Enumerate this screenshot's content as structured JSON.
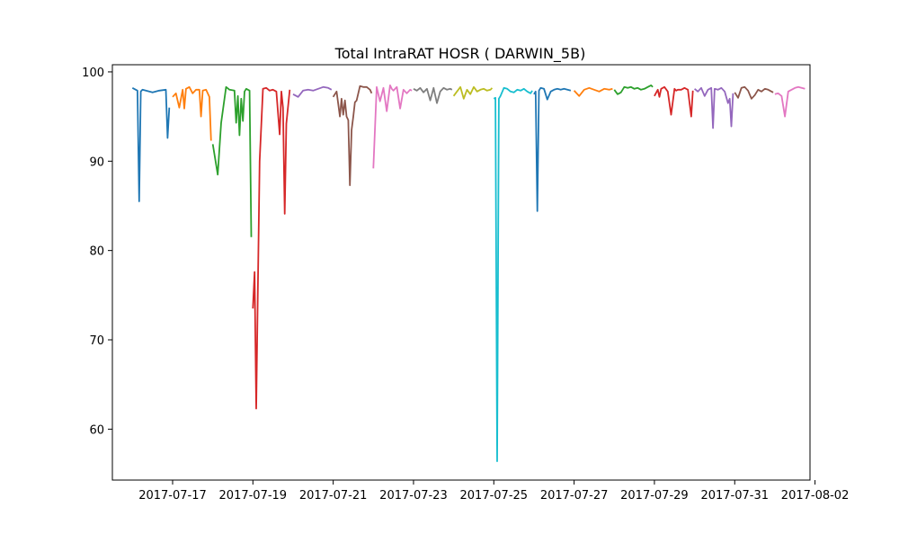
{
  "chart_data": {
    "type": "line",
    "title": "Total IntraRAT HOSR ( DARWIN_5B)",
    "xlabel": "",
    "ylabel": "",
    "x_axis": {
      "type": "date",
      "range": [
        "2017-07-15T12:00",
        "2017-08-01T21:00"
      ],
      "ticks": [
        "2017-07-17",
        "2017-07-19",
        "2017-07-21",
        "2017-07-23",
        "2017-07-25",
        "2017-07-27",
        "2017-07-29",
        "2017-07-31",
        "2017-08-02"
      ]
    },
    "y_axis": {
      "range": [
        54.3,
        100.8
      ],
      "ticks": [
        60,
        70,
        80,
        90,
        100
      ]
    },
    "grid": false,
    "legend": "none",
    "colors": [
      "#1f77b4",
      "#ff7f0e",
      "#2ca02c",
      "#d62728",
      "#9467bd",
      "#8c564b",
      "#e377c2",
      "#7f7f7f",
      "#bcbd22",
      "#17becf"
    ],
    "series": [
      {
        "x": [
          "2017-07-16T00:00",
          "2017-07-16T03:00",
          "2017-07-16T04:00",
          "2017-07-16T05:00",
          "2017-07-16T06:00",
          "2017-07-16T08:00",
          "2017-07-16T12:00",
          "2017-07-16T16:00",
          "2017-07-16T20:00",
          "2017-07-16T21:00",
          "2017-07-16T22:00",
          "2017-07-16T23:00"
        ],
        "y": [
          98.2,
          97.9,
          85.5,
          97.8,
          98.0,
          97.9,
          97.7,
          97.9,
          98.0,
          92.6,
          96.0,
          null
        ]
      },
      {
        "x": [
          "2017-07-17T00:00",
          "2017-07-17T02:00",
          "2017-07-17T04:00",
          "2017-07-17T06:00",
          "2017-07-17T07:00",
          "2017-07-17T08:00",
          "2017-07-17T10:00",
          "2017-07-17T12:00",
          "2017-07-17T14:00",
          "2017-07-17T16:00",
          "2017-07-17T17:00",
          "2017-07-17T18:00",
          "2017-07-17T20:00",
          "2017-07-17T22:00",
          "2017-07-17T23:00"
        ],
        "y": [
          97.2,
          97.6,
          96.0,
          98.0,
          95.9,
          98.1,
          98.3,
          97.6,
          98.0,
          98.0,
          95.0,
          97.9,
          98.0,
          97.2,
          92.3
        ]
      },
      {
        "x": [
          "2017-07-18T00:00",
          "2017-07-18T03:00",
          "2017-07-18T05:00",
          "2017-07-18T08:00",
          "2017-07-18T10:00",
          "2017-07-18T13:00",
          "2017-07-18T14:00",
          "2017-07-18T15:00",
          "2017-07-18T16:00",
          "2017-07-18T17:00",
          "2017-07-18T18:00",
          "2017-07-18T19:00",
          "2017-07-18T20:00",
          "2017-07-18T22:00",
          "2017-07-18T23:00"
        ],
        "y": [
          91.9,
          88.5,
          94.3,
          98.3,
          98.0,
          97.9,
          94.3,
          97.3,
          92.9,
          97.0,
          94.5,
          97.8,
          98.1,
          97.9,
          81.5
        ]
      },
      {
        "x": [
          "2017-07-19T00:00",
          "2017-07-19T01:00",
          "2017-07-19T02:00",
          "2017-07-19T04:00",
          "2017-07-19T06:00",
          "2017-07-19T08:00",
          "2017-07-19T10:00",
          "2017-07-19T12:00",
          "2017-07-19T14:00",
          "2017-07-19T16:00",
          "2017-07-19T17:00",
          "2017-07-19T18:00",
          "2017-07-19T19:00",
          "2017-07-19T20:00",
          "2017-07-19T22:00"
        ],
        "y": [
          73.5,
          77.6,
          62.3,
          90.0,
          98.1,
          98.2,
          97.9,
          98.0,
          97.8,
          93.0,
          97.8,
          96.0,
          84.1,
          94.2,
          98.0
        ]
      },
      {
        "x": [
          "2017-07-20T00:00",
          "2017-07-20T03:00",
          "2017-07-20T06:00",
          "2017-07-20T09:00",
          "2017-07-20T12:00",
          "2017-07-20T15:00",
          "2017-07-20T18:00",
          "2017-07-20T21:00",
          "2017-07-20T23:00"
        ],
        "y": [
          97.5,
          97.2,
          97.9,
          98.0,
          97.9,
          98.1,
          98.3,
          98.2,
          98.0
        ]
      },
      {
        "x": [
          "2017-07-21T00:00",
          "2017-07-21T02:00",
          "2017-07-21T04:00",
          "2017-07-21T05:00",
          "2017-07-21T06:00",
          "2017-07-21T07:00",
          "2017-07-21T08:00",
          "2017-07-21T09:00",
          "2017-07-21T10:00",
          "2017-07-21T11:00",
          "2017-07-21T12:00",
          "2017-07-21T13:00",
          "2017-07-21T14:00",
          "2017-07-21T16:00",
          "2017-07-21T18:00",
          "2017-07-21T20:00",
          "2017-07-21T22:00",
          "2017-07-21T23:00"
        ],
        "y": [
          97.2,
          97.8,
          95.0,
          97.0,
          95.2,
          96.8,
          95.0,
          94.6,
          87.3,
          93.5,
          95.0,
          96.6,
          96.8,
          98.4,
          98.3,
          98.3,
          98.0,
          97.6
        ]
      },
      {
        "x": [
          "2017-07-22T00:00",
          "2017-07-22T02:00",
          "2017-07-22T04:00",
          "2017-07-22T06:00",
          "2017-07-22T08:00",
          "2017-07-22T10:00",
          "2017-07-22T11:00",
          "2017-07-22T12:00",
          "2017-07-22T14:00",
          "2017-07-22T16:00",
          "2017-07-22T18:00",
          "2017-07-22T20:00",
          "2017-07-22T22:00",
          "2017-07-22T23:00"
        ],
        "y": [
          89.2,
          98.3,
          96.7,
          98.2,
          95.6,
          98.5,
          98.1,
          97.9,
          98.3,
          95.9,
          98.0,
          97.6,
          98.0,
          97.9
        ]
      },
      {
        "x": [
          "2017-07-23T00:00",
          "2017-07-23T02:00",
          "2017-07-23T04:00",
          "2017-07-23T06:00",
          "2017-07-23T08:00",
          "2017-07-23T10:00",
          "2017-07-23T12:00",
          "2017-07-23T14:00",
          "2017-07-23T16:00",
          "2017-07-23T18:00",
          "2017-07-23T20:00",
          "2017-07-23T22:00",
          "2017-07-23T23:00"
        ],
        "y": [
          98.1,
          97.9,
          98.2,
          97.7,
          98.1,
          96.8,
          98.2,
          96.5,
          97.8,
          98.2,
          98.0,
          98.1,
          98.0
        ]
      },
      {
        "x": [
          "2017-07-24T00:00",
          "2017-07-24T02:00",
          "2017-07-24T04:00",
          "2017-07-24T06:00",
          "2017-07-24T08:00",
          "2017-07-24T10:00",
          "2017-07-24T12:00",
          "2017-07-24T14:00",
          "2017-07-24T16:00",
          "2017-07-24T18:00",
          "2017-07-24T20:00",
          "2017-07-24T22:00",
          "2017-07-24T23:00"
        ],
        "y": [
          97.3,
          97.8,
          98.3,
          97.0,
          98.0,
          97.5,
          98.3,
          97.8,
          98.0,
          98.1,
          97.9,
          98.0,
          98.2
        ]
      },
      {
        "x": [
          "2017-07-25T00:00",
          "2017-07-25T01:00",
          "2017-07-25T02:00",
          "2017-07-25T03:00",
          "2017-07-25T04:00",
          "2017-07-25T06:00",
          "2017-07-25T08:00",
          "2017-07-25T10:00",
          "2017-07-25T12:00",
          "2017-07-25T14:00",
          "2017-07-25T16:00",
          "2017-07-25T18:00",
          "2017-07-25T20:00",
          "2017-07-25T22:00",
          "2017-07-25T23:00"
        ],
        "y": [
          97.0,
          97.1,
          56.4,
          97.0,
          97.3,
          98.2,
          98.1,
          97.8,
          97.7,
          98.0,
          97.9,
          98.1,
          97.8,
          97.6,
          97.9
        ]
      },
      {
        "x": [
          "2017-07-26T00:00",
          "2017-07-26T01:00",
          "2017-07-26T02:00",
          "2017-07-26T03:00",
          "2017-07-26T04:00",
          "2017-07-26T06:00",
          "2017-07-26T08:00",
          "2017-07-26T10:00",
          "2017-07-26T12:00",
          "2017-07-26T14:00",
          "2017-07-26T16:00",
          "2017-07-26T18:00",
          "2017-07-26T20:00",
          "2017-07-26T22:00",
          "2017-07-26T23:00"
        ],
        "y": [
          97.5,
          97.8,
          84.4,
          97.9,
          98.2,
          98.1,
          96.9,
          97.8,
          98.0,
          98.1,
          98.0,
          98.1,
          98.0,
          97.9,
          null
        ]
      },
      {
        "x": [
          "2017-07-27T00:00",
          "2017-07-27T03:00",
          "2017-07-27T06:00",
          "2017-07-27T09:00",
          "2017-07-27T12:00",
          "2017-07-27T15:00",
          "2017-07-27T18:00",
          "2017-07-27T21:00",
          "2017-07-27T23:00"
        ],
        "y": [
          97.9,
          97.3,
          98.0,
          98.2,
          98.0,
          97.8,
          98.1,
          98.0,
          98.1
        ]
      },
      {
        "x": [
          "2017-07-28T00:00",
          "2017-07-28T02:00",
          "2017-07-28T04:00",
          "2017-07-28T06:00",
          "2017-07-28T08:00",
          "2017-07-28T10:00",
          "2017-07-28T12:00",
          "2017-07-28T14:00",
          "2017-07-28T16:00",
          "2017-07-28T18:00",
          "2017-07-28T20:00",
          "2017-07-28T22:00",
          "2017-07-28T23:00"
        ],
        "y": [
          98.0,
          97.5,
          97.7,
          98.3,
          98.2,
          98.3,
          98.1,
          98.2,
          98.0,
          98.1,
          98.3,
          98.5,
          98.3
        ]
      },
      {
        "x": [
          "2017-07-29T00:00",
          "2017-07-29T02:00",
          "2017-07-29T03:00",
          "2017-07-29T04:00",
          "2017-07-29T06:00",
          "2017-07-29T08:00",
          "2017-07-29T10:00",
          "2017-07-29T12:00",
          "2017-07-29T13:00",
          "2017-07-29T14:00",
          "2017-07-29T16:00",
          "2017-07-29T18:00",
          "2017-07-29T20:00",
          "2017-07-29T22:00",
          "2017-07-29T23:00"
        ],
        "y": [
          97.3,
          98.0,
          97.2,
          98.1,
          98.3,
          97.8,
          95.2,
          98.1,
          97.9,
          98.0,
          98.0,
          98.2,
          98.0,
          95.0,
          97.9
        ]
      },
      {
        "x": [
          "2017-07-30T00:00",
          "2017-07-30T02:00",
          "2017-07-30T04:00",
          "2017-07-30T06:00",
          "2017-07-30T08:00",
          "2017-07-30T10:00",
          "2017-07-30T11:00",
          "2017-07-30T12:00",
          "2017-07-30T14:00",
          "2017-07-30T16:00",
          "2017-07-30T18:00",
          "2017-07-30T20:00",
          "2017-07-30T21:00",
          "2017-07-30T22:00",
          "2017-07-30T23:00"
        ],
        "y": [
          98.1,
          97.8,
          98.2,
          97.3,
          98.0,
          98.2,
          93.7,
          98.1,
          98.0,
          98.2,
          97.8,
          96.5,
          97.0,
          93.9,
          97.6
        ]
      },
      {
        "x": [
          "2017-07-31T00:00",
          "2017-07-31T02:00",
          "2017-07-31T04:00",
          "2017-07-31T06:00",
          "2017-07-31T08:00",
          "2017-07-31T10:00",
          "2017-07-31T12:00",
          "2017-07-31T14:00",
          "2017-07-31T16:00",
          "2017-07-31T18:00",
          "2017-07-31T20:00",
          "2017-07-31T22:00",
          "2017-07-31T23:00"
        ],
        "y": [
          97.7,
          97.1,
          98.2,
          98.3,
          97.9,
          97.0,
          97.4,
          98.0,
          97.8,
          98.1,
          98.0,
          97.8,
          97.7
        ]
      },
      {
        "x": [
          "2017-08-01T00:00",
          "2017-08-01T02:00",
          "2017-08-01T04:00",
          "2017-08-01T06:00",
          "2017-08-01T08:00",
          "2017-08-01T10:00",
          "2017-08-01T12:00",
          "2017-08-01T14:00",
          "2017-08-01T16:00",
          "2017-08-01T18:00"
        ],
        "y": [
          97.5,
          97.6,
          97.3,
          95.0,
          97.8,
          98.0,
          98.2,
          98.3,
          98.2,
          98.1
        ]
      }
    ]
  }
}
